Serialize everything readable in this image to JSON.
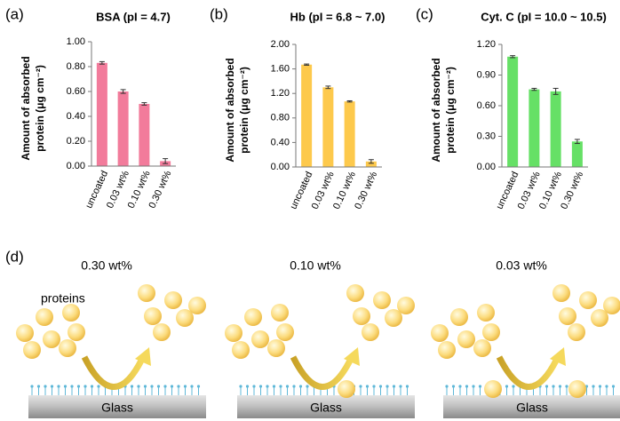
{
  "chart_data": [
    {
      "type": "bar",
      "panel_label": "(a)",
      "title": "BSA (pI = 4.7)",
      "title_color": "#c1272d",
      "ylabel": [
        "Amount of absorbed",
        "protein (μg cm⁻²)"
      ],
      "categories": [
        "uncoated",
        "0.03 wt%",
        "0.10 wt%",
        "0.30 wt%"
      ],
      "values": [
        0.83,
        0.6,
        0.5,
        0.04
      ],
      "errors": [
        0.01,
        0.015,
        0.01,
        0.02
      ],
      "color": "#f27b9b",
      "ylim": [
        0,
        1.0
      ],
      "yticks": [
        {
          "value": 0,
          "label": "0.00"
        },
        {
          "value": 0.2,
          "label": "0.20"
        },
        {
          "value": 0.4,
          "label": "0.40"
        },
        {
          "value": 0.6,
          "label": "0.60"
        },
        {
          "value": 0.8,
          "label": "0.80"
        },
        {
          "value": 1.0,
          "label": "1.00"
        }
      ]
    },
    {
      "type": "bar",
      "panel_label": "(b)",
      "title": "Hb (pI = 6.8 ~ 7.0)",
      "title_color": "#d8a73c",
      "ylabel": [
        "Amount of absorbed",
        "protein (μg cm⁻²)"
      ],
      "categories": [
        "uncoated",
        "0.03 wt%",
        "0.10 wt%",
        "0.30 wt%"
      ],
      "values": [
        1.67,
        1.3,
        1.07,
        0.09
      ],
      "errors": [
        0.01,
        0.02,
        0.01,
        0.03
      ],
      "color": "#fdc94c",
      "ylim": [
        0,
        2.0
      ],
      "yticks": [
        {
          "value": 0,
          "label": "0.00"
        },
        {
          "value": 0.4,
          "label": "0.40"
        },
        {
          "value": 0.8,
          "label": "0.80"
        },
        {
          "value": 1.2,
          "label": "1.20"
        },
        {
          "value": 1.6,
          "label": "1.60"
        },
        {
          "value": 2.0,
          "label": "2.00"
        }
      ]
    },
    {
      "type": "bar",
      "panel_label": "(c)",
      "title": "Cyt. C (pI = 10.0 ~ 10.5)",
      "title_color": "#5fe05f",
      "ylabel": [
        "Amount of absorbed",
        "protein (μg cm⁻²)"
      ],
      "categories": [
        "uncoated",
        "0.03 wt%",
        "0.10 wt%",
        "0.30 wt%"
      ],
      "values": [
        1.08,
        0.76,
        0.74,
        0.25
      ],
      "errors": [
        0.01,
        0.01,
        0.03,
        0.02
      ],
      "color": "#66e066",
      "ylim": [
        0,
        1.2
      ],
      "yticks": [
        {
          "value": 0,
          "label": "0.00"
        },
        {
          "value": 0.3,
          "label": "0.30"
        },
        {
          "value": 0.6,
          "label": "0.60"
        },
        {
          "value": 0.9,
          "label": "0.90"
        },
        {
          "value": 1.2,
          "label": "1.20"
        }
      ]
    }
  ],
  "diagram": {
    "panel_label": "(d)",
    "protein_label": "proteins",
    "panels": [
      {
        "label": "0.30 wt%",
        "substrate": "Glass"
      },
      {
        "label": "0.10 wt%",
        "substrate": "Glass"
      },
      {
        "label": "0.03 wt%",
        "substrate": "Glass"
      }
    ]
  }
}
